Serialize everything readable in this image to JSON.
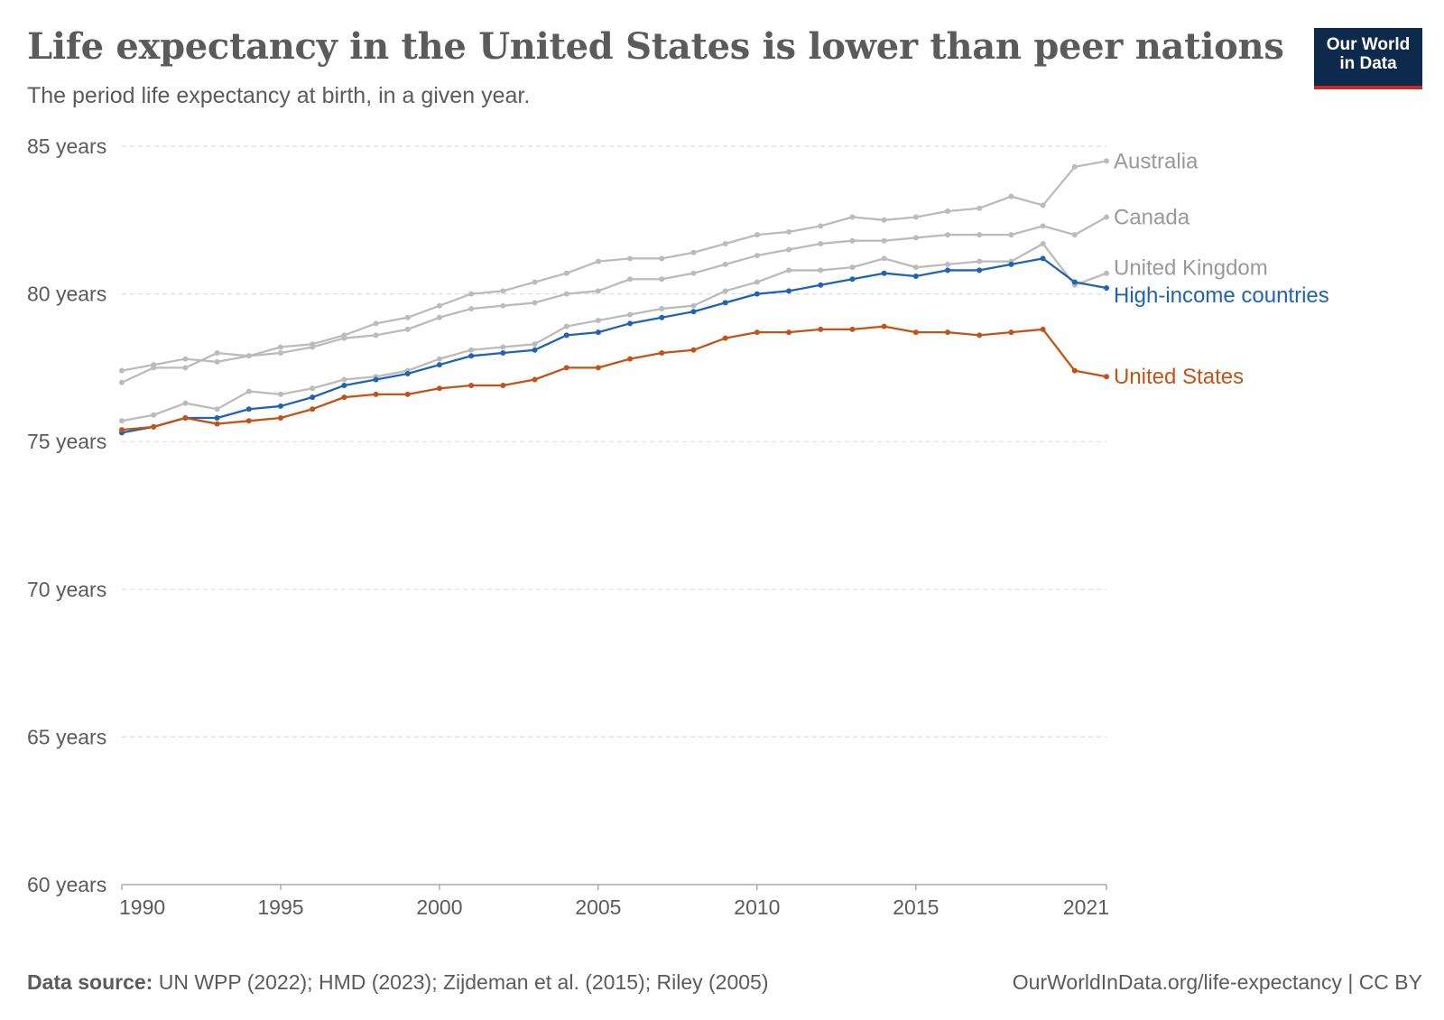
{
  "title": "Life expectancy in the United States is lower than peer nations",
  "subtitle": "The period life expectancy at birth, in a given year.",
  "logo": {
    "line1": "Our World",
    "line2": "in Data"
  },
  "footer": {
    "source_label": "Data source:",
    "source_text": " UN WPP (2022); HMD (2023); Zijdeman et al. (2015); Riley (2005)",
    "url_license": "OurWorldInData.org/life-expectancy | CC BY"
  },
  "colors": {
    "gray": "#bbbbbb",
    "label_gray": "#999999",
    "blue": "#1f63b5",
    "orange": "#c05418",
    "grid": "#dddddd",
    "axis_text": "#5b5b5b"
  },
  "chart_data": {
    "type": "line",
    "x": [
      1990,
      1991,
      1992,
      1993,
      1994,
      1995,
      1996,
      1997,
      1998,
      1999,
      2000,
      2001,
      2002,
      2003,
      2004,
      2005,
      2006,
      2007,
      2008,
      2009,
      2010,
      2011,
      2012,
      2013,
      2014,
      2015,
      2016,
      2017,
      2018,
      2019,
      2020,
      2021
    ],
    "xlim": [
      1990,
      2021
    ],
    "xticks": [
      1990,
      1995,
      2000,
      2005,
      2010,
      2015,
      2021
    ],
    "ylim": [
      60,
      85
    ],
    "yticks": [
      60,
      65,
      70,
      75,
      80,
      85
    ],
    "ytick_labels": [
      "60 years",
      "65 years",
      "70 years",
      "75 years",
      "80 years",
      "85 years"
    ],
    "grid": true,
    "series": [
      {
        "name": "Australia",
        "color": "#bbbbbb",
        "label_color": "#999999",
        "values": [
          77.0,
          77.5,
          77.5,
          78.0,
          77.9,
          78.2,
          78.3,
          78.6,
          79.0,
          79.2,
          79.6,
          80.0,
          80.1,
          80.4,
          80.7,
          81.1,
          81.2,
          81.2,
          81.4,
          81.7,
          82.0,
          82.1,
          82.3,
          82.6,
          82.5,
          82.6,
          82.8,
          82.9,
          83.3,
          83.0,
          84.3,
          84.5
        ]
      },
      {
        "name": "Canada",
        "color": "#bbbbbb",
        "label_color": "#999999",
        "values": [
          77.4,
          77.6,
          77.8,
          77.7,
          77.9,
          78.0,
          78.2,
          78.5,
          78.6,
          78.8,
          79.2,
          79.5,
          79.6,
          79.7,
          80.0,
          80.1,
          80.5,
          80.5,
          80.7,
          81.0,
          81.3,
          81.5,
          81.7,
          81.8,
          81.8,
          81.9,
          82.0,
          82.0,
          82.0,
          82.3,
          82.0,
          82.6
        ]
      },
      {
        "name": "United Kingdom",
        "color": "#bbbbbb",
        "label_color": "#999999",
        "values": [
          75.7,
          75.9,
          76.3,
          76.1,
          76.7,
          76.6,
          76.8,
          77.1,
          77.2,
          77.4,
          77.8,
          78.1,
          78.2,
          78.3,
          78.9,
          79.1,
          79.3,
          79.5,
          79.6,
          80.1,
          80.4,
          80.8,
          80.8,
          80.9,
          81.2,
          80.9,
          81.0,
          81.1,
          81.1,
          81.7,
          80.3,
          80.7
        ]
      },
      {
        "name": "High-income countries",
        "color": "#1f63b5",
        "label_color": "#1f63b5",
        "values": [
          75.3,
          75.5,
          75.8,
          75.8,
          76.1,
          76.2,
          76.5,
          76.9,
          77.1,
          77.3,
          77.6,
          77.9,
          78.0,
          78.1,
          78.6,
          78.7,
          79.0,
          79.2,
          79.4,
          79.7,
          80.0,
          80.1,
          80.3,
          80.5,
          80.7,
          80.6,
          80.8,
          80.8,
          81.0,
          81.2,
          80.4,
          80.2
        ]
      },
      {
        "name": "United States",
        "color": "#c05418",
        "label_color": "#c05418",
        "values": [
          75.4,
          75.5,
          75.8,
          75.6,
          75.7,
          75.8,
          76.1,
          76.5,
          76.6,
          76.6,
          76.8,
          76.9,
          76.9,
          77.1,
          77.5,
          77.5,
          77.8,
          78.0,
          78.1,
          78.5,
          78.7,
          78.7,
          78.8,
          78.8,
          78.9,
          78.7,
          78.7,
          78.6,
          78.7,
          78.8,
          77.4,
          77.2
        ]
      }
    ]
  }
}
